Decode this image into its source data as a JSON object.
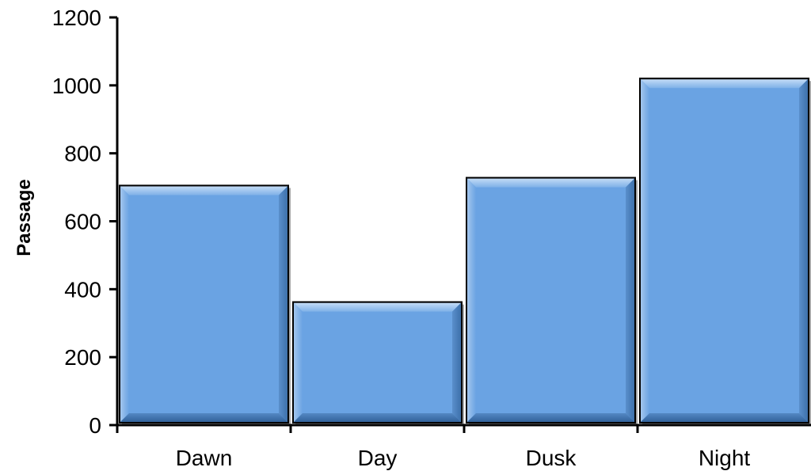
{
  "chart_data": {
    "type": "bar",
    "title": "",
    "xlabel": "",
    "ylabel": "Passage",
    "categories": [
      "Dawn",
      "Day",
      "Dusk",
      "Night"
    ],
    "values": [
      705,
      362,
      728,
      1020
    ],
    "ylim": [
      0,
      1200
    ],
    "yticks": [
      0,
      200,
      400,
      600,
      800,
      1000,
      1200
    ],
    "ytick_labels": [
      "0",
      "200",
      "400",
      "600",
      "800",
      "1000",
      "1200"
    ],
    "grid": false,
    "legend": "none",
    "bar_color": "#6aa3e3",
    "bar_edge_color": "#000000"
  }
}
